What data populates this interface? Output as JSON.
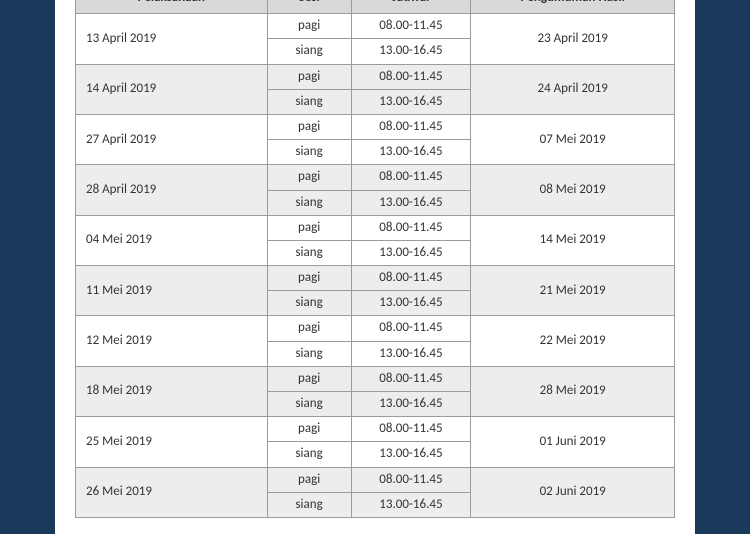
{
  "table": {
    "columns": [
      "Pelaksanaan",
      "Sesi",
      "Jadwal",
      "Pengumuman Hasil"
    ],
    "column_widths_pct": [
      32,
      14,
      20,
      34
    ],
    "header_bg": "#d9d9d9",
    "alt_row_bg": "#ededed",
    "border_color": "#9b9b9b",
    "text_color": "#333333",
    "fontsize_pt": 13,
    "sessions": [
      {
        "sesi": "pagi",
        "jadwal": "08.00-11.45"
      },
      {
        "sesi": "siang",
        "jadwal": "13.00-16.45"
      }
    ],
    "rows": [
      {
        "pelaksanaan": "13 April 2019",
        "pengumuman": "23 April 2019",
        "alt": false
      },
      {
        "pelaksanaan": "14 April 2019",
        "pengumuman": "24 April 2019",
        "alt": true
      },
      {
        "pelaksanaan": "27 April 2019",
        "pengumuman": "07 Mei 2019",
        "alt": false
      },
      {
        "pelaksanaan": "28 April 2019",
        "pengumuman": "08 Mei 2019",
        "alt": true
      },
      {
        "pelaksanaan": "04 Mei 2019",
        "pengumuman": "14 Mei 2019",
        "alt": false
      },
      {
        "pelaksanaan": "11 Mei 2019",
        "pengumuman": "21 Mei 2019",
        "alt": true
      },
      {
        "pelaksanaan": "12 Mei 2019",
        "pengumuman": "22 Mei 2019",
        "alt": false
      },
      {
        "pelaksanaan": "18 Mei 2019",
        "pengumuman": "28 Mei 2019",
        "alt": true
      },
      {
        "pelaksanaan": "25 Mei 2019",
        "pengumuman": "01 Juni 2019",
        "alt": false
      },
      {
        "pelaksanaan": "26 Mei 2019",
        "pengumuman": "02 Juni 2019",
        "alt": true
      }
    ]
  },
  "page": {
    "bg_color": "#1a3a5c",
    "card_bg": "#ffffff"
  }
}
